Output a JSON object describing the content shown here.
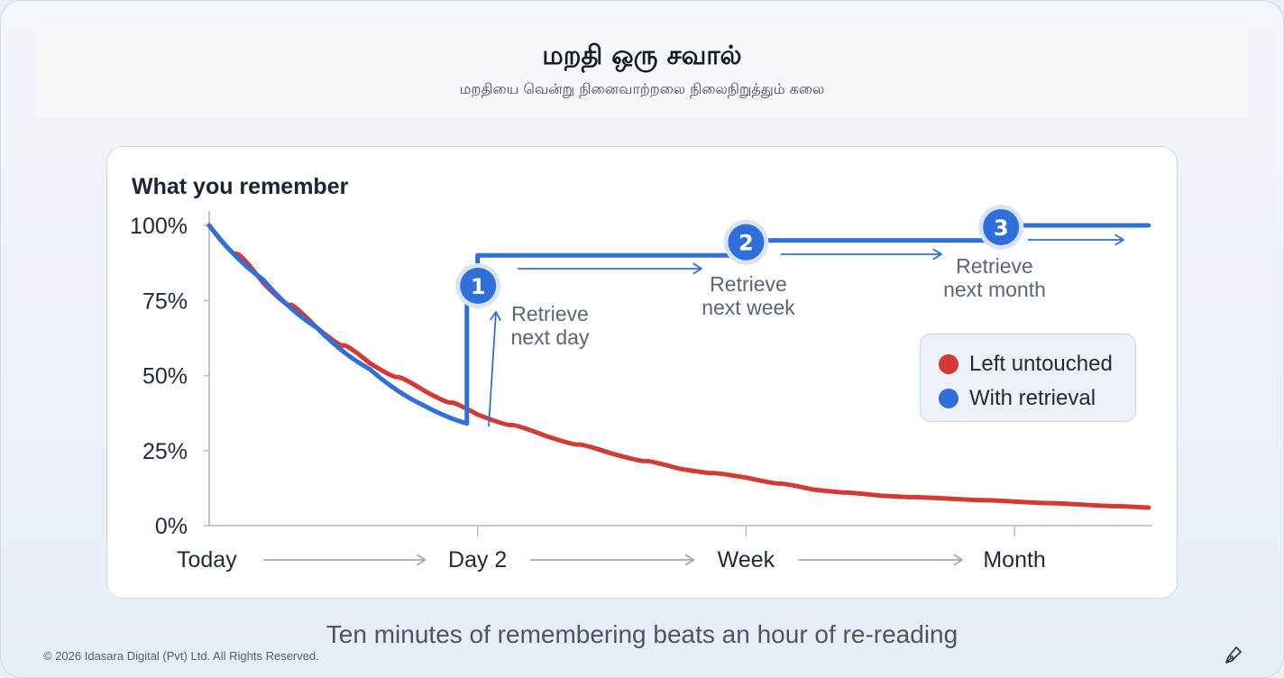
{
  "header": {
    "title": "மறதி ஒரு சவால்",
    "subtitle": "மறதியை வென்று நினைவாற்றலை நிலைநிறுத்தும் கலை"
  },
  "caption": "Ten minutes of remembering beats an hour of re-reading",
  "copyright": "© 2026 Idasara Digital (Pvt) Ltd. All Rights Reserved.",
  "icons": {
    "footer_icon": "pen-nib-icon"
  },
  "colors": {
    "untouched": "#d23a33",
    "retrieval": "#2f6fd9",
    "axis": "#a9b8cc",
    "arrow": "#9aabbf"
  },
  "chart_data": {
    "type": "line",
    "title": "What you remember",
    "ylabel": "",
    "xlabel": "",
    "ylim": [
      0,
      100
    ],
    "xlim": [
      0,
      3.5
    ],
    "y_ticks": [
      {
        "value": 0,
        "label": "0%"
      },
      {
        "value": 25,
        "label": "25%"
      },
      {
        "value": 50,
        "label": "50%"
      },
      {
        "value": 75,
        "label": "75%"
      },
      {
        "value": 100,
        "label": "100%"
      }
    ],
    "x_ticks": [
      {
        "value": 0,
        "label": "Today"
      },
      {
        "value": 1,
        "label": "Day 2"
      },
      {
        "value": 2,
        "label": "Week"
      },
      {
        "value": 3,
        "label": "Month"
      }
    ],
    "legend_position": "right",
    "series": [
      {
        "name": "Left untouched",
        "x": [
          0,
          0.2,
          0.4,
          0.6,
          0.8,
          1.0,
          1.25,
          1.5,
          1.75,
          2.0,
          2.25,
          2.5,
          2.75,
          3.0,
          3.25,
          3.5
        ],
        "values": [
          100,
          81,
          66,
          54,
          45,
          37,
          30,
          24,
          19,
          16,
          12,
          10,
          9,
          8,
          7,
          6
        ]
      },
      {
        "name": "With retrieval",
        "x": [
          0,
          0.2,
          0.4,
          0.6,
          0.8,
          0.96,
          0.96,
          1.0,
          1.0,
          1.94,
          1.94,
          2.0,
          2.0,
          2.93,
          2.93,
          3.0,
          3.5
        ],
        "values": [
          100,
          82,
          66,
          52,
          40,
          34,
          75,
          77,
          90,
          90,
          90,
          95,
          95,
          95,
          100,
          100,
          100
        ]
      }
    ],
    "retrievals": [
      {
        "step": "1",
        "x": 1.0,
        "y": 85,
        "label": [
          "Retrieve",
          "next day"
        ]
      },
      {
        "step": "2",
        "x": 2.0,
        "y": 95,
        "label": [
          "Retrieve",
          "next week"
        ]
      },
      {
        "step": "3",
        "x": 2.95,
        "y": 100,
        "label": [
          "Retrieve",
          "next month"
        ]
      }
    ]
  }
}
